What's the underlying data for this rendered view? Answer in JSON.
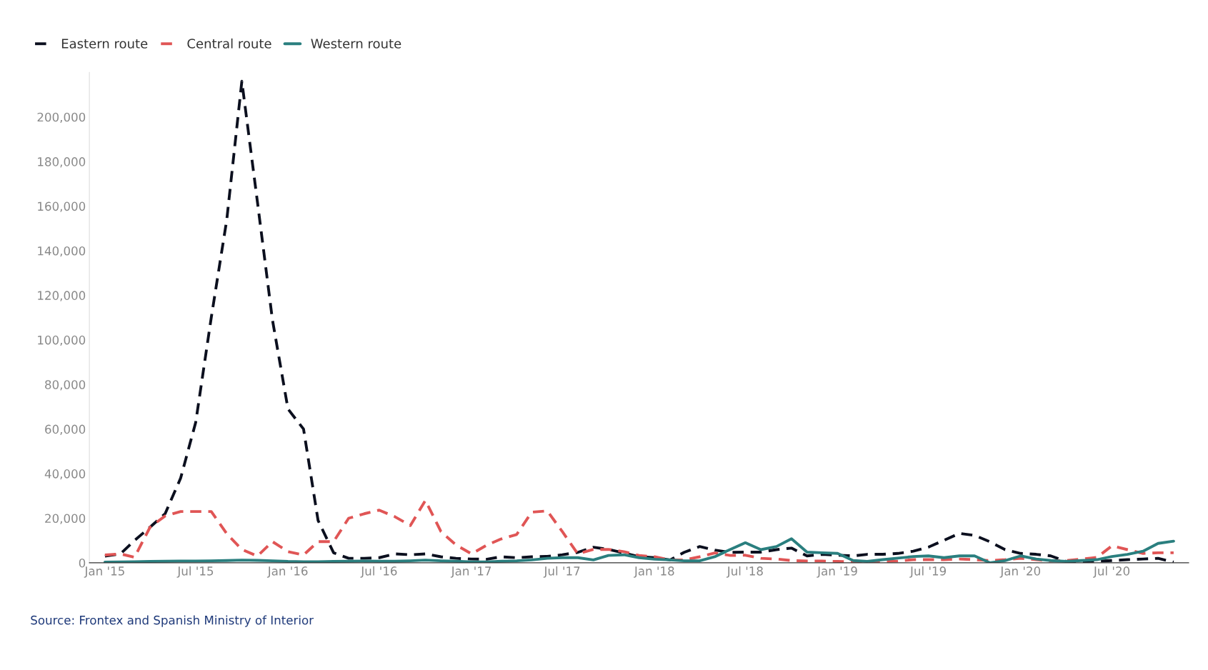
{
  "chart_data": {
    "type": "line",
    "x": [
      "2015-01",
      "2015-02",
      "2015-03",
      "2015-04",
      "2015-05",
      "2015-06",
      "2015-07",
      "2015-08",
      "2015-09",
      "2015-10",
      "2015-11",
      "2015-12",
      "2016-01",
      "2016-02",
      "2016-03",
      "2016-04",
      "2016-05",
      "2016-06",
      "2016-07",
      "2016-08",
      "2016-09",
      "2016-10",
      "2016-11",
      "2016-12",
      "2017-01",
      "2017-02",
      "2017-03",
      "2017-04",
      "2017-05",
      "2017-06",
      "2017-07",
      "2017-08",
      "2017-09",
      "2017-10",
      "2017-11",
      "2017-12",
      "2018-01",
      "2018-02",
      "2018-03",
      "2018-04",
      "2018-05",
      "2018-06",
      "2018-07",
      "2018-08",
      "2018-09",
      "2018-10",
      "2018-11",
      "2018-12",
      "2019-01",
      "2019-02",
      "2019-03",
      "2019-04",
      "2019-05",
      "2019-06",
      "2019-07",
      "2019-08",
      "2019-09",
      "2019-10",
      "2019-11",
      "2019-12",
      "2020-01",
      "2020-02",
      "2020-03",
      "2020-04",
      "2020-05",
      "2020-06",
      "2020-07",
      "2020-08",
      "2020-09",
      "2020-10",
      "2020-11"
    ],
    "series": [
      {
        "name": "Eastern route",
        "color": "#0b0f1e",
        "line_style": "dashed",
        "values": [
          3000,
          4000,
          10000,
          16000,
          22000,
          38000,
          63000,
          110000,
          154000,
          216000,
          162000,
          109000,
          69000,
          60000,
          19000,
          4500,
          2000,
          2000,
          2300,
          4000,
          3600,
          4000,
          2700,
          2000,
          1700,
          1600,
          2700,
          2300,
          2700,
          2900,
          3600,
          4700,
          7000,
          6000,
          4400,
          2700,
          2300,
          1300,
          4700,
          7300,
          5700,
          4700,
          4800,
          4800,
          5900,
          6600,
          3100,
          3800,
          3400,
          3100,
          3800,
          3800,
          4200,
          5200,
          7000,
          10100,
          13200,
          12300,
          9400,
          5900,
          4200,
          3800,
          3100,
          600,
          600,
          700,
          1000,
          1400,
          1700,
          2000,
          300
        ]
      },
      {
        "name": "Central route",
        "color": "#e05555",
        "line_style": "dashed",
        "values": [
          3500,
          4000,
          2500,
          16000,
          21000,
          23000,
          23000,
          23000,
          13000,
          6000,
          3000,
          9500,
          5000,
          3500,
          9500,
          9500,
          20000,
          22000,
          23600,
          20700,
          16700,
          28000,
          14000,
          8000,
          4000,
          8000,
          10700,
          12700,
          22700,
          23300,
          14000,
          4000,
          6000,
          6000,
          5000,
          3300,
          2700,
          1300,
          1300,
          2700,
          4400,
          3300,
          3400,
          2000,
          1700,
          1000,
          800,
          800,
          600,
          400,
          600,
          600,
          800,
          1400,
          1400,
          1400,
          1700,
          1400,
          1000,
          1400,
          2000,
          1400,
          800,
          1000,
          1700,
          2400,
          7600,
          5900,
          4200,
          4500,
          4500
        ]
      },
      {
        "name": "Western route",
        "color": "#2a7f7f",
        "line_style": "solid",
        "values": [
          300,
          400,
          500,
          600,
          700,
          800,
          800,
          900,
          1000,
          1200,
          1100,
          900,
          600,
          500,
          500,
          600,
          700,
          800,
          700,
          700,
          900,
          1200,
          900,
          700,
          400,
          400,
          700,
          900,
          1300,
          2000,
          2300,
          2300,
          1300,
          3300,
          3600,
          2300,
          1600,
          1300,
          900,
          900,
          2700,
          6000,
          9000,
          5900,
          7300,
          10800,
          4800,
          4500,
          4200,
          1000,
          600,
          1400,
          2100,
          2800,
          3100,
          2300,
          3100,
          3100,
          0,
          1000,
          3100,
          1700,
          1000,
          600,
          1000,
          1400,
          2800,
          3800,
          5200,
          8700,
          9700
        ]
      }
    ],
    "xlim": [
      "2014-12",
      "2020-12"
    ],
    "xticks": [
      {
        "value": "2015-01",
        "label": "Jan '15"
      },
      {
        "value": "2015-07",
        "label": "Jul '15"
      },
      {
        "value": "2016-01",
        "label": "Jan '16"
      },
      {
        "value": "2016-07",
        "label": "Jul '16"
      },
      {
        "value": "2017-01",
        "label": "Jan '17"
      },
      {
        "value": "2017-07",
        "label": "Jul '17"
      },
      {
        "value": "2018-01",
        "label": "Jan '18"
      },
      {
        "value": "2018-07",
        "label": "Jul '18"
      },
      {
        "value": "2019-01",
        "label": "Jan '19"
      },
      {
        "value": "2019-07",
        "label": "Jul '19"
      },
      {
        "value": "2020-01",
        "label": "Jan '20"
      },
      {
        "value": "2020-07",
        "label": "Jul '20"
      }
    ],
    "ylim": [
      0,
      220000
    ],
    "yticks": [
      0,
      {
        "value": 20000,
        "label": "20,000"
      },
      {
        "value": 40000,
        "label": "40,000"
      },
      {
        "value": 60000,
        "label": "60,000"
      },
      {
        "value": 80000,
        "label": "80,000"
      },
      {
        "value": 100000,
        "label": "100,000"
      },
      {
        "value": 120000,
        "label": "120,000"
      },
      {
        "value": 140000,
        "label": "140,000"
      },
      {
        "value": 160000,
        "label": "160,000"
      },
      {
        "value": 180000,
        "label": "180,000"
      },
      {
        "value": 200000,
        "label": "200,000"
      }
    ],
    "grid": false,
    "legend": "top left",
    "annotations": [
      "Source: Frontex and Spanish Ministry of Interior"
    ]
  }
}
